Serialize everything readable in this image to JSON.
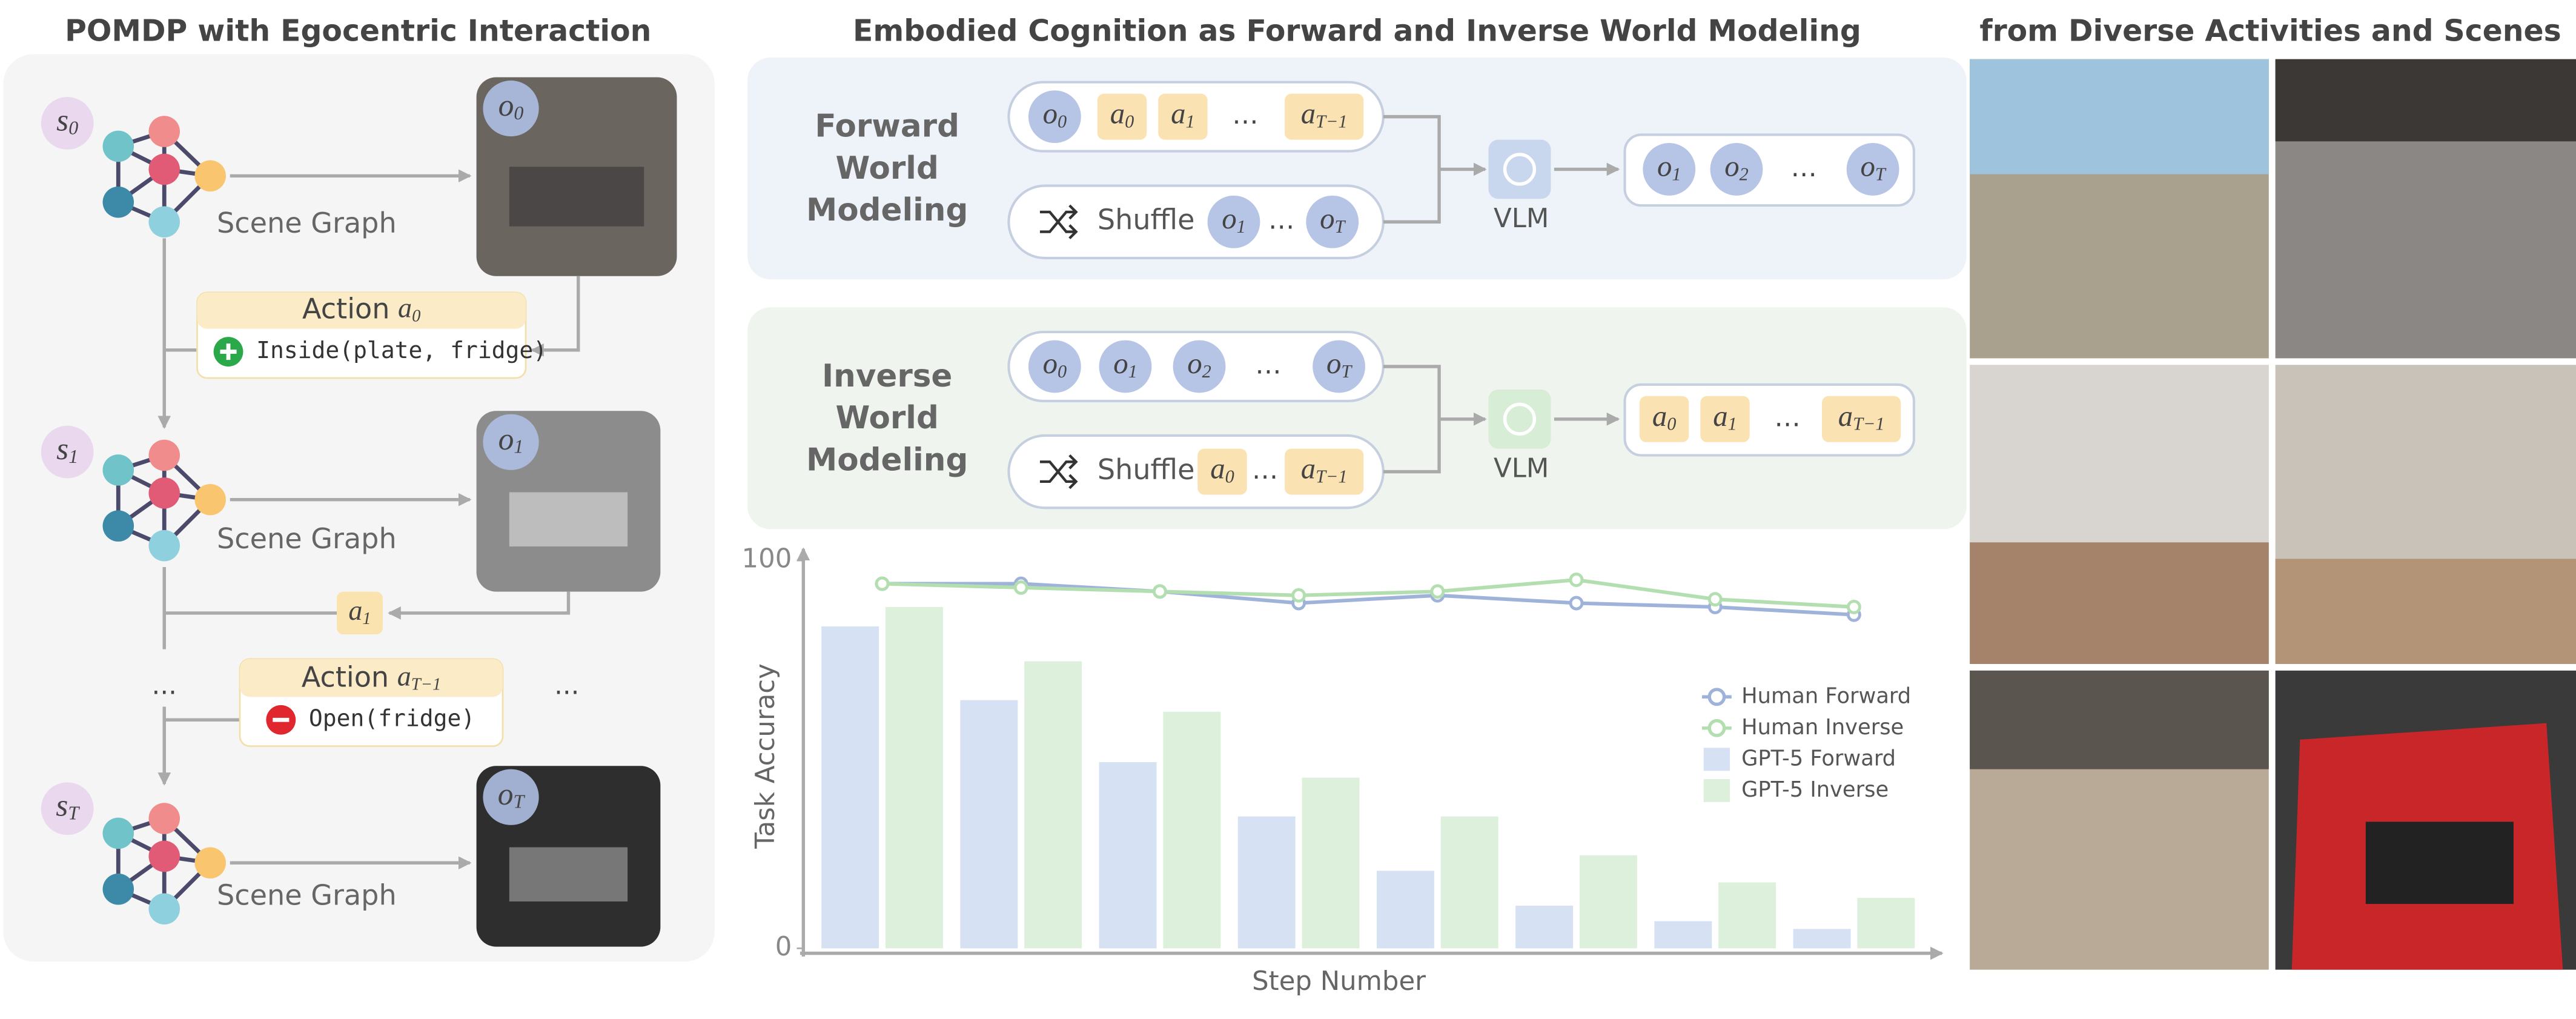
{
  "left": {
    "title": "POMDP with Egocentric Interaction",
    "states": [
      {
        "b": "s",
        "s": "0"
      },
      {
        "b": "s",
        "s": "1"
      },
      {
        "b": "s",
        "s": "T"
      }
    ],
    "observations": [
      {
        "b": "o",
        "s": "0"
      },
      {
        "b": "o",
        "s": "1"
      },
      {
        "b": "o",
        "s": "T"
      }
    ],
    "scene_graph_labels": [
      "Scene Graph",
      "Scene Graph",
      "Scene Graph"
    ],
    "actions": [
      {
        "label": "Action",
        "math": {
          "b": "a",
          "s": "0"
        },
        "predicate": "Inside(plate, fridge)"
      },
      {
        "math": {
          "b": "a",
          "s": "1"
        }
      },
      {
        "label": "Action",
        "math": {
          "b": "a",
          "s": "T−1"
        },
        "predicate": "Open(fridge)"
      }
    ],
    "ellipses": [
      "...",
      "..."
    ]
  },
  "middle": {
    "title": "Embodied Cognition as Forward and Inverse World Modeling",
    "forward": {
      "label": [
        "Forward",
        "World",
        "Modeling"
      ],
      "input": [
        {
          "b": "o",
          "s": "0"
        },
        {
          "b": "a",
          "s": "0"
        },
        {
          "b": "a",
          "s": "1"
        },
        {
          "t": "…"
        },
        {
          "b": "a",
          "s": "T−1"
        }
      ],
      "shuffle": {
        "label": "Shuffle",
        "tokens": [
          {
            "b": "o",
            "s": "1"
          },
          {
            "t": "…"
          },
          {
            "b": "o",
            "s": "T"
          }
        ]
      },
      "model": "VLM",
      "output": [
        {
          "b": "o",
          "s": "1"
        },
        {
          "b": "o",
          "s": "2"
        },
        {
          "t": "…"
        },
        {
          "b": "o",
          "s": "T"
        }
      ]
    },
    "inverse": {
      "label": [
        "Inverse",
        "World",
        "Modeling"
      ],
      "input": [
        {
          "b": "o",
          "s": "0"
        },
        {
          "b": "o",
          "s": "1"
        },
        {
          "b": "o",
          "s": "2"
        },
        {
          "t": "…"
        },
        {
          "b": "o",
          "s": "T"
        }
      ],
      "shuffle": {
        "label": "Shuffle",
        "tokens": [
          {
            "b": "a",
            "s": "0"
          },
          {
            "t": "…"
          },
          {
            "b": "a",
            "s": "T−1"
          }
        ]
      },
      "model": "VLM",
      "output": [
        {
          "b": "a",
          "s": "0"
        },
        {
          "b": "a",
          "s": "1"
        },
        {
          "t": "…"
        },
        {
          "b": "a",
          "s": "T−1"
        }
      ]
    }
  },
  "chart_data": {
    "type": "bar",
    "categories": [
      null,
      null,
      null,
      null,
      null,
      null,
      null,
      null
    ],
    "series": [
      {
        "name": "Human Forward",
        "type": "line",
        "color": "#9fb3da",
        "values": [
          94,
          94,
          92,
          89,
          91,
          89,
          88,
          86
        ]
      },
      {
        "name": "Human Inverse",
        "type": "line",
        "color": "#b3deb0",
        "values": [
          94,
          93,
          92,
          91,
          92,
          95,
          90,
          88
        ]
      },
      {
        "name": "GPT-5 Forward",
        "type": "bar",
        "color": "#d6e2f3",
        "values": [
          83,
          64,
          48,
          34,
          20,
          11,
          7,
          5
        ]
      },
      {
        "name": "GPT-5 Inverse",
        "type": "bar",
        "color": "#ddf0dc",
        "values": [
          88,
          74,
          61,
          44,
          34,
          24,
          17,
          13
        ]
      }
    ],
    "ylim": [
      0,
      100
    ],
    "yticks": [
      0,
      100
    ],
    "ylabel": "Task Accuracy",
    "xlabel": "Step Number"
  },
  "right": {
    "title": "from Diverse Activities and Scenes"
  }
}
